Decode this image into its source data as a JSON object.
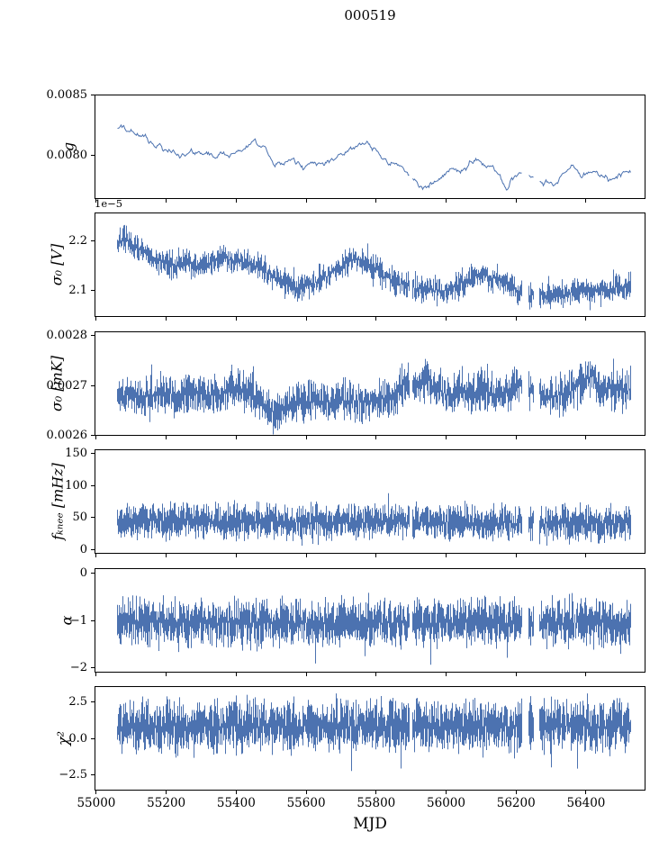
{
  "figure": {
    "title": "000519"
  },
  "chart_data": {
    "type": "line",
    "title": "000519",
    "xlabel": "MJD",
    "grid": false,
    "legend": null,
    "line_color": "#4c72b0",
    "xlim": [
      54995,
      56570
    ],
    "x_data_range": [
      55057,
      56530
    ],
    "xticks": {
      "values": [
        55000,
        55200,
        55400,
        55600,
        55800,
        56000,
        56200,
        56400
      ],
      "labels": [
        "55000",
        "55200",
        "55400",
        "55600",
        "55800",
        "56000",
        "56200",
        "56400"
      ]
    },
    "gaps": [
      [
        55895,
        55904
      ],
      [
        56218,
        56238
      ],
      [
        56252,
        56268
      ]
    ],
    "panels": [
      {
        "name": "g",
        "ylabel": "g",
        "style": "line",
        "ylim": [
          0.00764,
          0.0085
        ],
        "yticks": {
          "values": [
            0.008,
            0.0085
          ],
          "labels": [
            "0.0080",
            "0.0085"
          ]
        },
        "noise_amp": 2e-05,
        "trend": [
          [
            55057,
            0.00822
          ],
          [
            55100,
            0.0082
          ],
          [
            55130,
            0.00815
          ],
          [
            55160,
            0.00809
          ],
          [
            55200,
            0.00803
          ],
          [
            55240,
            0.00801
          ],
          [
            55270,
            0.00803
          ],
          [
            55300,
            0.008
          ],
          [
            55340,
            0.00799
          ],
          [
            55380,
            0.00801
          ],
          [
            55420,
            0.00805
          ],
          [
            55450,
            0.0081
          ],
          [
            55480,
            0.00805
          ],
          [
            55500,
            0.00794
          ],
          [
            55530,
            0.00792
          ],
          [
            55560,
            0.00796
          ],
          [
            55590,
            0.00789
          ],
          [
            55620,
            0.00794
          ],
          [
            55650,
            0.00792
          ],
          [
            55680,
            0.00797
          ],
          [
            55710,
            0.00801
          ],
          [
            55740,
            0.00807
          ],
          [
            55765,
            0.00811
          ],
          [
            55790,
            0.00806
          ],
          [
            55820,
            0.00797
          ],
          [
            55850,
            0.00792
          ],
          [
            55880,
            0.00789
          ],
          [
            55910,
            0.0078
          ],
          [
            55940,
            0.00773
          ],
          [
            55960,
            0.00775
          ],
          [
            55990,
            0.0078
          ],
          [
            56010,
            0.00788
          ],
          [
            56040,
            0.00786
          ],
          [
            56070,
            0.00794
          ],
          [
            56100,
            0.00796
          ],
          [
            56130,
            0.00791
          ],
          [
            56155,
            0.00783
          ],
          [
            56175,
            0.00772
          ],
          [
            56195,
            0.00782
          ],
          [
            56220,
            0.00786
          ],
          [
            56250,
            0.00781
          ],
          [
            56280,
            0.00778
          ],
          [
            56310,
            0.00777
          ],
          [
            56340,
            0.00786
          ],
          [
            56365,
            0.0079
          ],
          [
            56390,
            0.00781
          ],
          [
            56420,
            0.00785
          ],
          [
            56450,
            0.00783
          ],
          [
            56480,
            0.00779
          ],
          [
            56510,
            0.00786
          ],
          [
            56530,
            0.00787
          ]
        ]
      },
      {
        "name": "sigma0_V",
        "ylabel": "σ₀ [V]",
        "offset_label": "1e−5",
        "style": "band",
        "ylim": [
          2.047,
          2.258
        ],
        "yticks": {
          "values": [
            2.1,
            2.2
          ],
          "labels": [
            "2.1",
            "2.2"
          ]
        },
        "noise_amp": 0.013,
        "samples": 4,
        "spike_up": {
          "p": 0.008,
          "size": 0.045
        },
        "spike_down": {
          "p": 0.008,
          "size": 0.045
        },
        "trend": [
          [
            55057,
            2.19
          ],
          [
            55075,
            2.21
          ],
          [
            55100,
            2.19
          ],
          [
            55130,
            2.18
          ],
          [
            55160,
            2.17
          ],
          [
            55190,
            2.155
          ],
          [
            55220,
            2.15
          ],
          [
            55250,
            2.16
          ],
          [
            55280,
            2.15
          ],
          [
            55310,
            2.155
          ],
          [
            55340,
            2.16
          ],
          [
            55370,
            2.165
          ],
          [
            55400,
            2.16
          ],
          [
            55430,
            2.155
          ],
          [
            55460,
            2.15
          ],
          [
            55490,
            2.135
          ],
          [
            55520,
            2.12
          ],
          [
            55550,
            2.11
          ],
          [
            55580,
            2.105
          ],
          [
            55610,
            2.11
          ],
          [
            55640,
            2.12
          ],
          [
            55670,
            2.135
          ],
          [
            55700,
            2.15
          ],
          [
            55730,
            2.16
          ],
          [
            55760,
            2.165
          ],
          [
            55790,
            2.15
          ],
          [
            55820,
            2.13
          ],
          [
            55850,
            2.12
          ],
          [
            55880,
            2.11
          ],
          [
            55910,
            2.105
          ],
          [
            55940,
            2.1
          ],
          [
            55970,
            2.1
          ],
          [
            56000,
            2.1
          ],
          [
            56030,
            2.11
          ],
          [
            56060,
            2.12
          ],
          [
            56090,
            2.13
          ],
          [
            56120,
            2.13
          ],
          [
            56150,
            2.12
          ],
          [
            56180,
            2.11
          ],
          [
            56210,
            2.095
          ],
          [
            56240,
            2.09
          ],
          [
            56270,
            2.09
          ],
          [
            56300,
            2.09
          ],
          [
            56330,
            2.09
          ],
          [
            56360,
            2.095
          ],
          [
            56390,
            2.1
          ],
          [
            56420,
            2.1
          ],
          [
            56450,
            2.1
          ],
          [
            56480,
            2.105
          ],
          [
            56530,
            2.11
          ]
        ]
      },
      {
        "name": "sigma0_mK",
        "ylabel": "σ₀ [mK]",
        "style": "band",
        "ylim": [
          0.002599,
          0.002809
        ],
        "yticks": {
          "values": [
            0.0026,
            0.0027,
            0.0028
          ],
          "labels": [
            "0.0026",
            "0.0027",
            "0.0028"
          ]
        },
        "noise_amp": 2e-05,
        "samples": 4,
        "spike_up": {
          "p": 0.01,
          "size": 7e-05
        },
        "spike_down": {
          "p": 0.008,
          "size": 5e-05
        },
        "trend": [
          [
            55057,
            0.00268
          ],
          [
            55150,
            0.00268
          ],
          [
            55250,
            0.002685
          ],
          [
            55350,
            0.00268
          ],
          [
            55420,
            0.002695
          ],
          [
            55460,
            0.002675
          ],
          [
            55500,
            0.002645
          ],
          [
            55540,
            0.00266
          ],
          [
            55580,
            0.00267
          ],
          [
            55650,
            0.002665
          ],
          [
            55720,
            0.00267
          ],
          [
            55790,
            0.00267
          ],
          [
            55850,
            0.002675
          ],
          [
            55890,
            0.00271
          ],
          [
            55915,
            0.002695
          ],
          [
            55945,
            0.002715
          ],
          [
            55975,
            0.00269
          ],
          [
            56010,
            0.00268
          ],
          [
            56060,
            0.002685
          ],
          [
            56110,
            0.00269
          ],
          [
            56160,
            0.00268
          ],
          [
            56200,
            0.002705
          ],
          [
            56240,
            0.002685
          ],
          [
            56290,
            0.00268
          ],
          [
            56340,
            0.00268
          ],
          [
            56380,
            0.0027
          ],
          [
            56420,
            0.00272
          ],
          [
            56450,
            0.002695
          ],
          [
            56490,
            0.00269
          ],
          [
            56530,
            0.00269
          ]
        ]
      },
      {
        "name": "f_knee",
        "ylabel": "fₖₙₑₑ [mHz]",
        "style": "band",
        "ylim": [
          -6,
          156
        ],
        "yticks": {
          "values": [
            0,
            50,
            100,
            150
          ],
          "labels": [
            "0",
            "50",
            "100",
            "150"
          ]
        },
        "noise_amp": 13,
        "samples": 5,
        "spike_up": {
          "p": 0.005,
          "size": 55
        },
        "spike_down": {
          "p": 0.003,
          "size": 22
        },
        "trend": [
          [
            55057,
            44
          ],
          [
            55300,
            45
          ],
          [
            55600,
            42
          ],
          [
            55900,
            43
          ],
          [
            56100,
            42
          ],
          [
            56300,
            40
          ],
          [
            56530,
            41
          ]
        ]
      },
      {
        "name": "alpha",
        "ylabel": "α",
        "style": "band",
        "ylim": [
          -2.1,
          0.1
        ],
        "yticks": {
          "values": [
            -2,
            -1,
            0
          ],
          "labels": [
            "−2",
            "−1",
            "0"
          ]
        },
        "noise_amp": 0.23,
        "samples": 5,
        "spike_up": {
          "p": 0.006,
          "size": 0.62
        },
        "spike_down": {
          "p": 0.01,
          "size": 0.9
        },
        "trend": [
          [
            55057,
            -1.05
          ],
          [
            56530,
            -1.05
          ]
        ]
      },
      {
        "name": "chi2",
        "ylabel": "χ²",
        "style": "band",
        "ylim": [
          -3.6,
          3.6
        ],
        "yticks": {
          "values": [
            -2.5,
            0,
            2.5
          ],
          "labels": [
            "−2.5",
            "0.0",
            "2.5"
          ]
        },
        "noise_amp": 0.85,
        "samples": 5,
        "spike_up": {
          "p": 0.008,
          "size": 1.9
        },
        "spike_down": {
          "p": 0.01,
          "size": 3.3
        },
        "trend": [
          [
            55057,
            0.85
          ],
          [
            56530,
            0.85
          ]
        ]
      }
    ]
  }
}
